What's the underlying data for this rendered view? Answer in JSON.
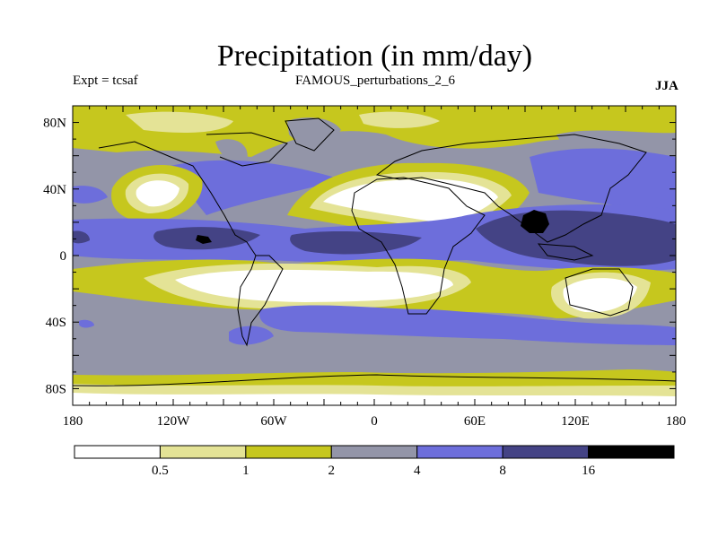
{
  "title": "Precipitation (in mm/day)",
  "experiment": "Expt = tcsaf",
  "subtitle": "FAMOUS_perturbations_2_6",
  "season": "JJA",
  "map": {
    "lat_labels": [
      "80N",
      "40N",
      "0",
      "40S",
      "80S"
    ],
    "lat_values": [
      80,
      40,
      0,
      -40,
      -80
    ],
    "lon_labels": [
      "180",
      "120W",
      "60W",
      "0",
      "60E",
      "120E",
      "180"
    ],
    "lon_values": [
      -180,
      -120,
      -60,
      0,
      60,
      120,
      180
    ]
  },
  "colorbar": {
    "levels": [
      "0.5",
      "1",
      "2",
      "4",
      "8",
      "16"
    ],
    "colors": [
      "#ffffff",
      "#e4e396",
      "#c6c71e",
      "#9395a8",
      "#6d6edb",
      "#444385",
      "#000000"
    ]
  }
}
